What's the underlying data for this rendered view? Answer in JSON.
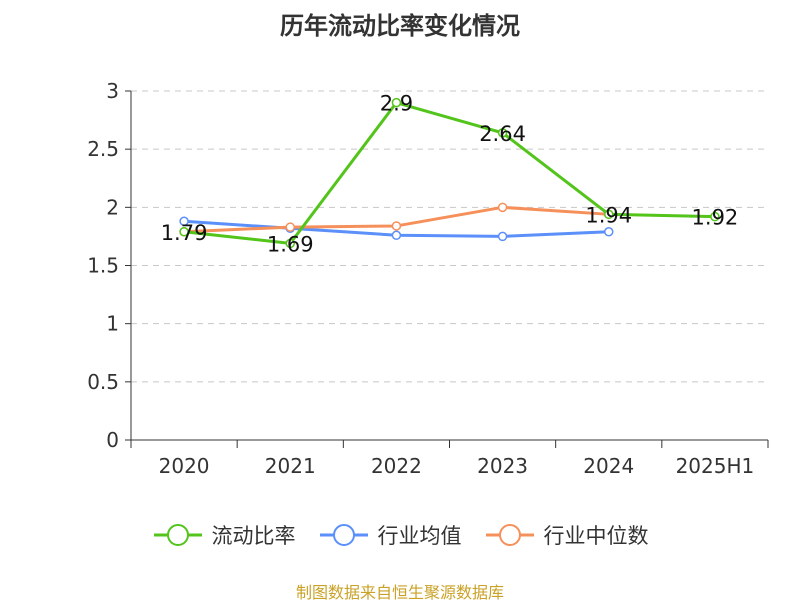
{
  "title": "历年流动比率变化情况",
  "source": "制图数据来自恒生聚源数据库",
  "chart_data": {
    "type": "line",
    "title": "历年流动比率变化情况",
    "categories": [
      "2020",
      "2021",
      "2022",
      "2023",
      "2024",
      "2025H1"
    ],
    "ylim": [
      0,
      3
    ],
    "yticks": [
      "0",
      "0.5",
      "1",
      "1.5",
      "2",
      "2.5",
      "3"
    ],
    "grid": true,
    "legend_position": "bottom",
    "series": [
      {
        "name": "流动比率",
        "color": "#52c41a",
        "values": [
          1.79,
          1.69,
          2.9,
          2.64,
          1.94,
          1.92
        ],
        "labels": [
          "1.79",
          "1.69",
          "2.9",
          "2.64",
          "1.94",
          "1.92"
        ]
      },
      {
        "name": "行业均值",
        "color": "#5b8ff9",
        "values": [
          1.88,
          1.82,
          1.76,
          1.75,
          1.79,
          null
        ]
      },
      {
        "name": "行业中位数",
        "color": "#f6905a",
        "values": [
          1.79,
          1.83,
          1.84,
          2.0,
          1.94,
          null
        ]
      }
    ]
  }
}
